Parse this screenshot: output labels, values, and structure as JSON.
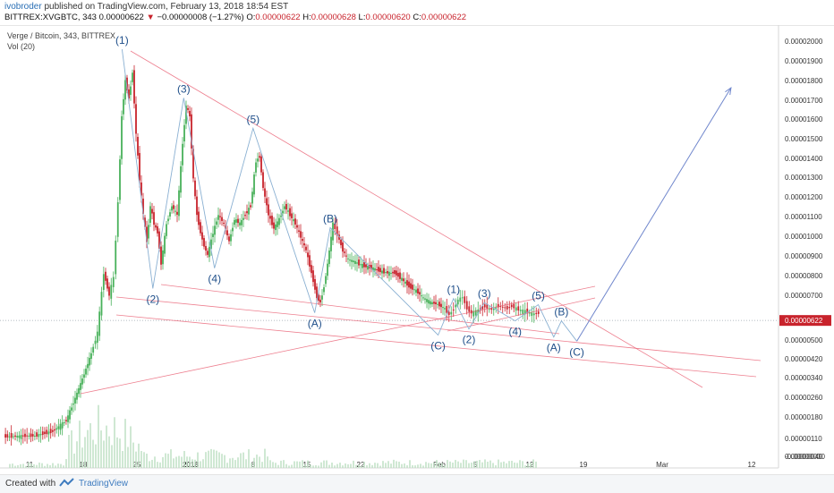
{
  "header": {
    "author": "ivobroder",
    "published": "published on TradingView.com, February 13, 2018 18:54 EST",
    "symbol": "BITTREX:XVGBTC, 343",
    "price": "0.00000622",
    "change": "−0.00000008 (−1.27%)",
    "o_label": "O:",
    "o_value": "0.00000622",
    "h_label": "H:",
    "h_value": "0.00000628",
    "l_label": "L:",
    "l_value": "0.00000620",
    "c_label": "C:",
    "c_value": "0.00000622"
  },
  "legend": {
    "title": "Verge / Bitcoin, 343, BITTREX",
    "volume": "Vol (20)"
  },
  "footer": {
    "created": "Created with",
    "brand": "TradingView"
  },
  "colors": {
    "up": "#48b15a",
    "down": "#c8232c",
    "wave_line": "#8ab0d2",
    "trend_line": "#e8556a",
    "projection": "#6f86cc",
    "wave_label": "#1f4f8a",
    "volume": "#bfe0c4"
  },
  "chart_data": {
    "type": "candlestick",
    "title": "Verge / Bitcoin, 343, BITTREX",
    "x_ticks": [
      "11",
      "18",
      "25",
      "2018",
      "8",
      "15",
      "22",
      "Feb",
      "5",
      "12",
      "19",
      "Mar",
      "12"
    ],
    "y_ticks": [
      "0.00002000",
      "0.00001900",
      "0.00001800",
      "0.00001700",
      "0.00001600",
      "0.00001500",
      "0.00001400",
      "0.00001300",
      "0.00001200",
      "0.00001100",
      "0.00001000",
      "0.00000900",
      "0.00000800",
      "0.00000700",
      "0.00000600",
      "0.00000500",
      "0.00000420",
      "0.00000340",
      "0.00000260",
      "0.00000180",
      "0.00000110",
      "0.00000040",
      "-0.00000030"
    ],
    "y_range": [
      -3e-07,
      2.1e-06
    ],
    "waves": [
      {
        "label": "(1)",
        "date": "2017-12-23",
        "price": 1.96e-05
      },
      {
        "label": "(2)",
        "date": "2017-12-27",
        "price": 7.8e-06
      },
      {
        "label": "(3)",
        "date": "2017-12-31",
        "price": 1.72e-05
      },
      {
        "label": "(4)",
        "date": "2018-01-04",
        "price": 8.8e-06
      },
      {
        "label": "(5)",
        "date": "2018-01-09",
        "price": 1.57e-05
      },
      {
        "label": "(A)",
        "date": "2018-01-17",
        "price": 6.6e-06
      },
      {
        "label": "(B)",
        "date": "2018-01-19",
        "price": 1.08e-05
      },
      {
        "label": "(C)",
        "date": "2018-02-02",
        "price": 5.5e-06
      },
      {
        "label": "(1)",
        "date": "2018-02-04",
        "price": 7.3e-06
      },
      {
        "label": "(2)",
        "date": "2018-02-06",
        "price": 5.8e-06
      },
      {
        "label": "(3)",
        "date": "2018-02-08",
        "price": 7.1e-06
      },
      {
        "label": "(4)",
        "date": "2018-02-12",
        "price": 6.2e-06
      },
      {
        "label": "(5)",
        "date": "2018-02-15",
        "price": 7e-06
      },
      {
        "label": "(A)",
        "date": "2018-02-17",
        "price": 5.4e-06
      },
      {
        "label": "(B)",
        "date": "2018-02-18",
        "price": 6.2e-06
      },
      {
        "label": "(C)",
        "date": "2018-02-20",
        "price": 5.2e-06
      }
    ],
    "projection": {
      "from_date": "2018-02-20",
      "from_price": 5.2e-06,
      "to_date": "2018-03-12",
      "to_price": 1.77e-05
    },
    "grid": false
  }
}
